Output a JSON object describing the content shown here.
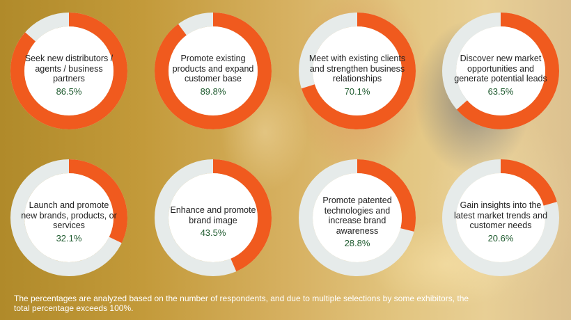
{
  "chart_data": {
    "type": "pie",
    "style": "donut",
    "colors": {
      "filled": "#f05a1e",
      "remaining": "#e6ebea",
      "center": "#ffffff",
      "value_text": "#1e5a2e"
    },
    "items": [
      {
        "label": "Seek new distributors / agents / business partners",
        "value": 86.5,
        "display": "86.5%"
      },
      {
        "label": "Promote existing products and expand customer base",
        "value": 89.8,
        "display": "89.8%"
      },
      {
        "label": "Meet with existing clients and strengthen business relationships",
        "value": 70.1,
        "display": "70.1%"
      },
      {
        "label": "Discover new market opportunities and generate potential leads",
        "value": 63.5,
        "display": "63.5%"
      },
      {
        "label": "Launch and promote new brands, products, or services",
        "value": 32.1,
        "display": "32.1%"
      },
      {
        "label": "Enhance and promote brand image",
        "value": 43.5,
        "display": "43.5%"
      },
      {
        "label": "Promote patented technologies and increase brand awareness",
        "value": 28.8,
        "display": "28.8%"
      },
      {
        "label": "Gain insights into the latest market trends and customer needs",
        "value": 20.6,
        "display": "20.6%"
      }
    ]
  },
  "footnote": "The percentages are analyzed based on the number of respondents, and due to multiple selections by some exhibitors, the total percentage exceeds 100%."
}
